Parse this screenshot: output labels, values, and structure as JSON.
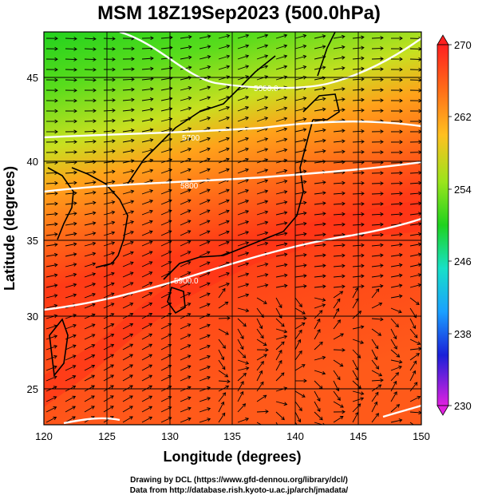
{
  "title": "MSM 18Z19Sep2023 (500.0hPa)",
  "xaxis": {
    "label": "Longitude (degrees)",
    "ticks": [
      "120",
      "125",
      "130",
      "135",
      "140",
      "145",
      "150"
    ],
    "range": [
      120,
      150
    ]
  },
  "yaxis": {
    "label": "Latitude  (degrees)",
    "ticks": [
      "25",
      "30",
      "35",
      "40",
      "45"
    ],
    "range": [
      22.4,
      47.6
    ]
  },
  "colorbar": {
    "ticks": [
      "270",
      "262",
      "254",
      "246",
      "238",
      "230"
    ],
    "range": [
      230,
      270
    ]
  },
  "contour_labels": [
    "5600.0",
    "5700",
    "5800",
    "5900.0"
  ],
  "credits": {
    "line1": "Drawing by DCL (https://www.gfd-dennou.org/library/dcl/)",
    "line2": "Data from http://database.rish.kyoto-u.ac.jp/arch/jmadata/"
  },
  "colors": {
    "cold": "#1fd21f",
    "warm": "#ff2a1a",
    "contour": "#ffffff"
  }
}
